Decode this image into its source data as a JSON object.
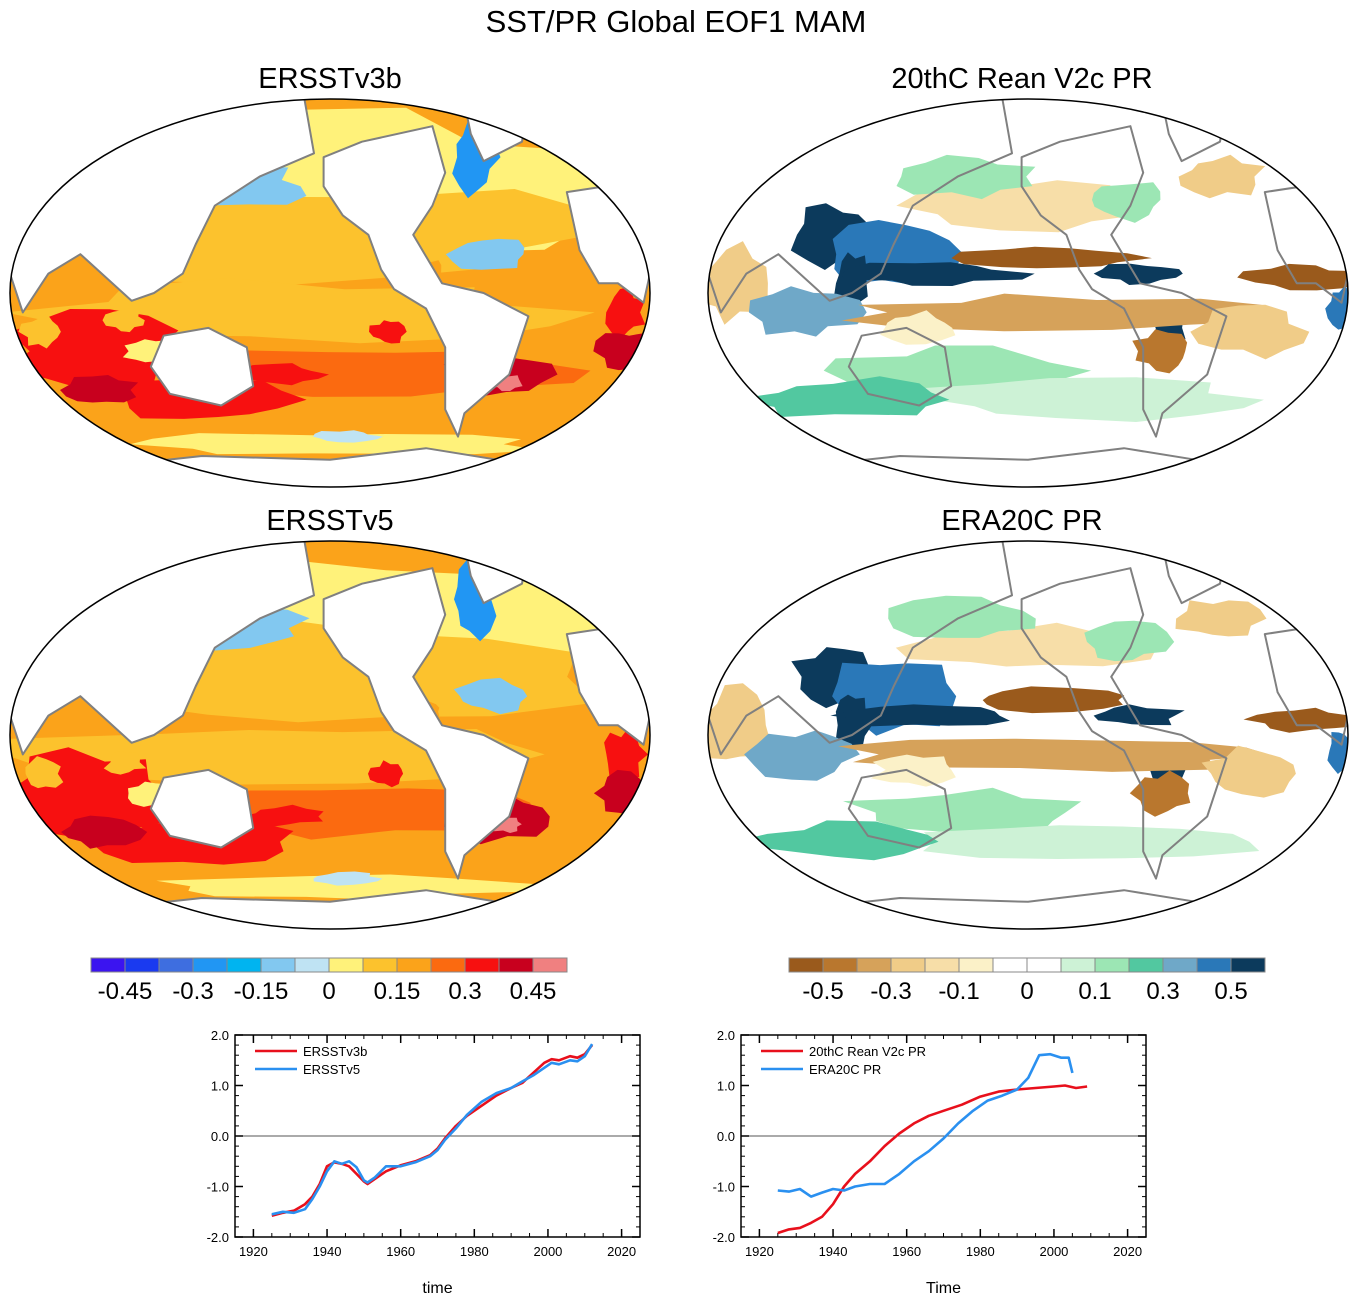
{
  "title": "SST/PR Global EOF1 MAM",
  "maps": [
    {
      "title": "ERSSTv3b",
      "kind": "sst"
    },
    {
      "title": "20thC Rean V2c PR",
      "kind": "pr"
    },
    {
      "title": "ERSSTv5",
      "kind": "sst"
    },
    {
      "title": "ERA20C PR",
      "kind": "pr"
    }
  ],
  "colors": {
    "sst_palette": [
      "#3b14f0",
      "#1a3af0",
      "#3e6ee0",
      "#2196f3",
      "#00b4f0",
      "#82c8f0",
      "#bfe3f3",
      "#fff27a",
      "#fcc22d",
      "#fba31a",
      "#fb6a10",
      "#f71010",
      "#c8001e",
      "#f08080"
    ],
    "pr_palette": [
      "#9a5a1c",
      "#b9772e",
      "#d6a25a",
      "#f0cc88",
      "#f7dea8",
      "#fbf1c8",
      "#ffffff",
      "#ffffff",
      "#cdf2d6",
      "#9ce6b4",
      "#52c8a0",
      "#6fa8c8",
      "#2a78b8",
      "#0c3a5c"
    ],
    "coast": "#808080",
    "series_red": "#e8101c",
    "series_blue": "#2a90f0"
  },
  "colorbars": [
    {
      "name": "sst",
      "labels": [
        "-0.45",
        "-0.3",
        "-0.15",
        "0",
        "0.15",
        "0.3",
        "0.45"
      ]
    },
    {
      "name": "pr",
      "labels": [
        "-0.5",
        "-0.3",
        "-0.1",
        "0",
        "0.1",
        "0.3",
        "0.5"
      ]
    }
  ],
  "chart_data": [
    {
      "type": "line",
      "title": "",
      "xlabel": "time",
      "ylabel": "",
      "xlim": [
        1915,
        2025
      ],
      "ylim": [
        -2.0,
        2.0
      ],
      "xticks": [
        "1920",
        "1940",
        "1960",
        "1980",
        "2000",
        "2020"
      ],
      "yticks": [
        "2.0",
        "1.0",
        "0.0",
        "-1.0",
        "-2.0"
      ],
      "series": [
        {
          "name": "ERSSTv3b",
          "color": "red",
          "x": [
            1925,
            1928,
            1931,
            1934,
            1936,
            1938,
            1940,
            1942,
            1944,
            1946,
            1948,
            1950,
            1951,
            1953,
            1956,
            1960,
            1964,
            1968,
            1970,
            1972,
            1975,
            1978,
            1982,
            1986,
            1990,
            1993,
            1996,
            1999,
            2001,
            2003,
            2006,
            2008,
            2010,
            2012
          ],
          "y": [
            -1.58,
            -1.52,
            -1.48,
            -1.35,
            -1.2,
            -0.95,
            -0.6,
            -0.52,
            -0.55,
            -0.6,
            -0.75,
            -0.9,
            -0.95,
            -0.85,
            -0.7,
            -0.58,
            -0.5,
            -0.38,
            -0.25,
            -0.05,
            0.2,
            0.4,
            0.6,
            0.8,
            0.95,
            1.05,
            1.25,
            1.45,
            1.52,
            1.5,
            1.58,
            1.55,
            1.62,
            1.8
          ]
        },
        {
          "name": "ERSSTv5",
          "color": "blue",
          "x": [
            1925,
            1928,
            1931,
            1934,
            1936,
            1938,
            1940,
            1942,
            1944,
            1946,
            1948,
            1950,
            1951,
            1953,
            1956,
            1960,
            1964,
            1968,
            1970,
            1972,
            1975,
            1978,
            1982,
            1986,
            1990,
            1993,
            1996,
            1999,
            2001,
            2003,
            2006,
            2008,
            2010,
            2012
          ],
          "y": [
            -1.55,
            -1.5,
            -1.52,
            -1.45,
            -1.25,
            -1.0,
            -0.7,
            -0.5,
            -0.55,
            -0.5,
            -0.62,
            -0.88,
            -0.92,
            -0.82,
            -0.6,
            -0.6,
            -0.52,
            -0.4,
            -0.28,
            -0.08,
            0.15,
            0.42,
            0.68,
            0.85,
            0.95,
            1.08,
            1.2,
            1.35,
            1.45,
            1.42,
            1.5,
            1.48,
            1.58,
            1.82
          ]
        }
      ]
    },
    {
      "type": "line",
      "title": "",
      "xlabel": "Time",
      "ylabel": "",
      "xlim": [
        1915,
        2025
      ],
      "ylim": [
        -2.0,
        2.0
      ],
      "xticks": [
        "1920",
        "1940",
        "1960",
        "1980",
        "2000",
        "2020"
      ],
      "yticks": [
        "2.0",
        "1.0",
        "0.0",
        "-1.0",
        "-2.0"
      ],
      "series": [
        {
          "name": "20thC Rean V2c PR",
          "color": "red",
          "x": [
            1925,
            1928,
            1931,
            1934,
            1937,
            1940,
            1943,
            1946,
            1950,
            1954,
            1958,
            1962,
            1966,
            1970,
            1975,
            1980,
            1985,
            1990,
            1995,
            2000,
            2003,
            2006,
            2009
          ],
          "y": [
            -1.92,
            -1.85,
            -1.82,
            -1.72,
            -1.6,
            -1.35,
            -1.0,
            -0.75,
            -0.5,
            -0.2,
            0.05,
            0.25,
            0.4,
            0.5,
            0.62,
            0.78,
            0.88,
            0.92,
            0.95,
            0.98,
            1.0,
            0.95,
            0.98
          ]
        },
        {
          "name": "ERA20C PR",
          "color": "blue",
          "x": [
            1925,
            1928,
            1931,
            1934,
            1937,
            1940,
            1943,
            1946,
            1950,
            1954,
            1958,
            1962,
            1966,
            1970,
            1974,
            1978,
            1982,
            1986,
            1990,
            1993,
            1996,
            1999,
            2002,
            2004,
            2005
          ],
          "y": [
            -1.08,
            -1.1,
            -1.05,
            -1.2,
            -1.12,
            -1.05,
            -1.08,
            -1.0,
            -0.95,
            -0.95,
            -0.75,
            -0.5,
            -0.3,
            -0.05,
            0.25,
            0.5,
            0.7,
            0.8,
            0.92,
            1.15,
            1.6,
            1.62,
            1.55,
            1.55,
            1.25
          ]
        }
      ]
    }
  ]
}
